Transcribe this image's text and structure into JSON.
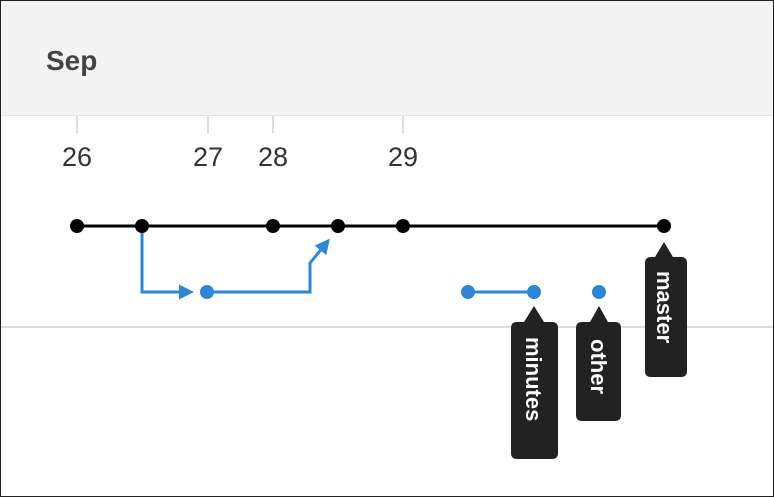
{
  "month": "Sep",
  "days": [
    "26",
    "27",
    "28",
    "29"
  ],
  "branches": {
    "master": "master",
    "minutes": "minutes",
    "other": "other"
  },
  "colors": {
    "main_line": "#000000",
    "branch_line": "#2f86d6",
    "badge_bg": "#222222",
    "badge_text": "#ffffff",
    "header_bg": "#f4f4f4",
    "divider": "#dcdcdc"
  }
}
